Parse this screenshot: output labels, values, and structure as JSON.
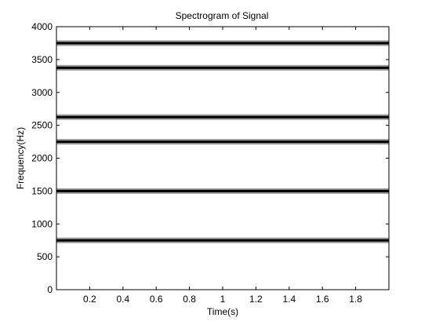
{
  "chart_data": {
    "type": "heatmap",
    "title": "Spectrogram of Signal",
    "xlabel": "Time(s)",
    "ylabel": "Frequency(Hz)",
    "xlim": [
      0,
      2
    ],
    "ylim": [
      0,
      4000
    ],
    "xticks": [
      0.2,
      0.4,
      0.6,
      0.8,
      1,
      1.2,
      1.4,
      1.6,
      1.8
    ],
    "xtick_labels": [
      "0.2",
      "0.4",
      "0.6",
      "0.8",
      "1",
      "1.2",
      "1.4",
      "1.6",
      "1.8"
    ],
    "yticks": [
      0,
      500,
      1000,
      1500,
      2000,
      2500,
      3000,
      3500,
      4000
    ],
    "ytick_labels": [
      "0",
      "500",
      "1000",
      "1500",
      "2000",
      "2500",
      "3000",
      "3500",
      "4000"
    ],
    "tones_hz": [
      750,
      1500,
      2250,
      2625,
      3375,
      3750
    ],
    "grid": false,
    "colors": {
      "background": "#ffffff",
      "band_core": "#000000",
      "band_edge": "#9a9a9a"
    }
  }
}
